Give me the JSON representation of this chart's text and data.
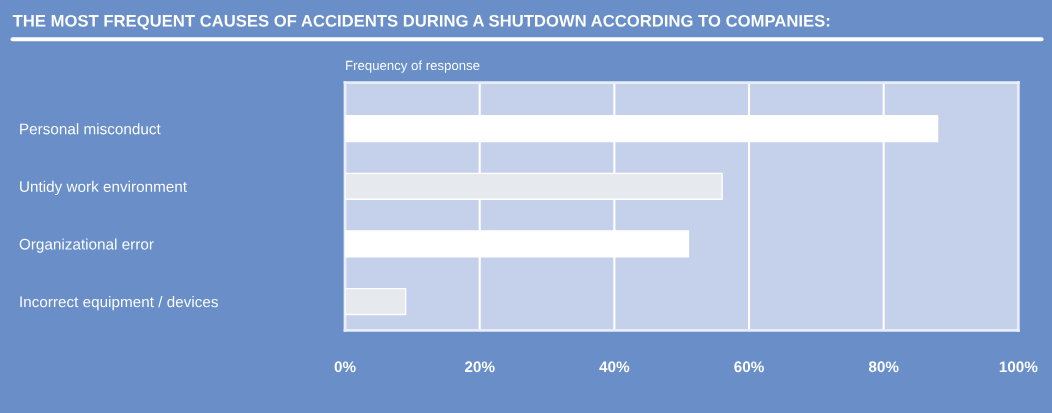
{
  "chart_data": {
    "type": "bar",
    "orientation": "horizontal",
    "title": "THE MOST FREQUENT CAUSES OF ACCIDENTS DURING A SHUTDOWN ACCORDING TO COMPANIES:",
    "subtitle": "Frequency of response",
    "categories": [
      "Personal misconduct",
      "Untidy work environment",
      "Organizational error",
      "Incorrect equipment / devices"
    ],
    "values": [
      88,
      56,
      51,
      9
    ],
    "colors": [
      "#ffffff",
      "#e6eaee",
      "#ffffff",
      "#e6eaee"
    ],
    "xlim": [
      0,
      100
    ],
    "xticks": [
      {
        "value": 0,
        "label": "0%"
      },
      {
        "value": 20,
        "label": "20%"
      },
      {
        "value": 40,
        "label": "40%"
      },
      {
        "value": 60,
        "label": "60%"
      },
      {
        "value": 80,
        "label": "80%"
      },
      {
        "value": 100,
        "label": "100%"
      }
    ],
    "grid": "x"
  }
}
